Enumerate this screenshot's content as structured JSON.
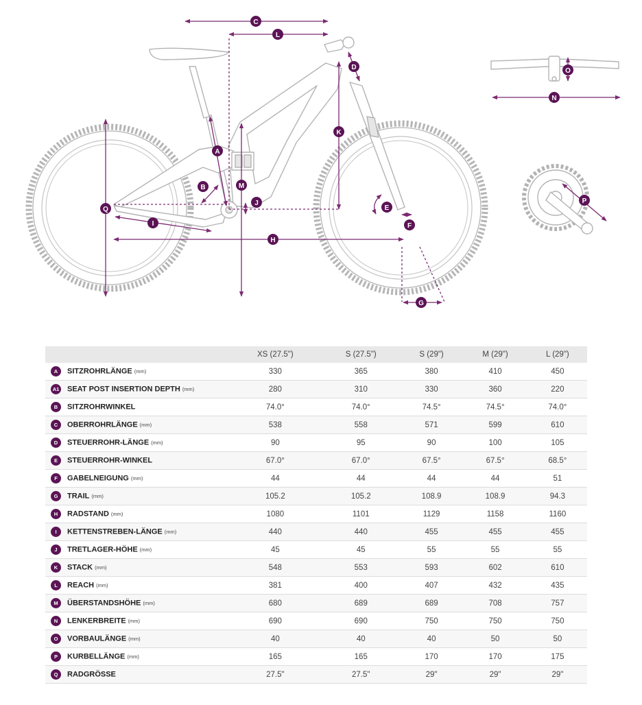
{
  "diagram": {
    "markers": [
      "A",
      "B",
      "C",
      "D",
      "E",
      "F",
      "G",
      "H",
      "I",
      "J",
      "K",
      "L",
      "M",
      "N",
      "O",
      "P",
      "Q"
    ],
    "accent_color": "#7b2a72",
    "frame_color": "#b8b8b8",
    "marker_color": "#5b1455"
  },
  "table": {
    "columns": [
      "XS (27.5\")",
      "S (27.5\")",
      "S (29\")",
      "M (29\")",
      "L (29\")"
    ],
    "rows": [
      {
        "code": "A",
        "name": "SITZROHRLÄNGE",
        "unit": "(mm)",
        "values": [
          "330",
          "365",
          "380",
          "410",
          "450"
        ]
      },
      {
        "code": "A1",
        "name": "SEAT POST INSERTION DEPTH",
        "unit": "(mm)",
        "values": [
          "280",
          "310",
          "330",
          "360",
          "220"
        ]
      },
      {
        "code": "B",
        "name": "SITZROHRWINKEL",
        "unit": "",
        "values": [
          "74.0°",
          "74.0°",
          "74.5°",
          "74.5°",
          "74.0°"
        ]
      },
      {
        "code": "C",
        "name": "OBERROHRLÄNGE",
        "unit": "(mm)",
        "values": [
          "538",
          "558",
          "571",
          "599",
          "610"
        ]
      },
      {
        "code": "D",
        "name": "STEUERROHR-LÄNGE",
        "unit": "(mm)",
        "values": [
          "90",
          "95",
          "90",
          "100",
          "105"
        ]
      },
      {
        "code": "E",
        "name": "STEUERROHR-WINKEL",
        "unit": "",
        "values": [
          "67.0°",
          "67.0°",
          "67.5°",
          "67.5°",
          "68.5°"
        ]
      },
      {
        "code": "F",
        "name": "GABELNEIGUNG",
        "unit": "(mm)",
        "values": [
          "44",
          "44",
          "44",
          "44",
          "51"
        ]
      },
      {
        "code": "G",
        "name": "TRAIL",
        "unit": "(mm)",
        "values": [
          "105.2",
          "105.2",
          "108.9",
          "108.9",
          "94.3"
        ]
      },
      {
        "code": "H",
        "name": "RADSTAND",
        "unit": "(mm)",
        "values": [
          "1080",
          "1101",
          "1129",
          "1158",
          "1160"
        ]
      },
      {
        "code": "I",
        "name": "KETTENSTREBEN-LÄNGE",
        "unit": "(mm)",
        "values": [
          "440",
          "440",
          "455",
          "455",
          "455"
        ]
      },
      {
        "code": "J",
        "name": "TRETLAGER-HÖHE",
        "unit": "(mm)",
        "values": [
          "45",
          "45",
          "55",
          "55",
          "55"
        ]
      },
      {
        "code": "K",
        "name": "STACK",
        "unit": "(mm)",
        "values": [
          "548",
          "553",
          "593",
          "602",
          "610"
        ]
      },
      {
        "code": "L",
        "name": "REACH",
        "unit": "(mm)",
        "values": [
          "381",
          "400",
          "407",
          "432",
          "435"
        ]
      },
      {
        "code": "M",
        "name": "ÜBERSTANDSHÖHE",
        "unit": "(mm)",
        "values": [
          "680",
          "689",
          "689",
          "708",
          "757"
        ]
      },
      {
        "code": "N",
        "name": "LENKERBREITE",
        "unit": "(mm)",
        "values": [
          "690",
          "690",
          "750",
          "750",
          "750"
        ]
      },
      {
        "code": "O",
        "name": "VORBAULÄNGE",
        "unit": "(mm)",
        "values": [
          "40",
          "40",
          "40",
          "50",
          "50"
        ]
      },
      {
        "code": "P",
        "name": "KURBELLÄNGE",
        "unit": "(mm)",
        "values": [
          "165",
          "165",
          "170",
          "170",
          "175"
        ]
      },
      {
        "code": "Q",
        "name": "RADGRÖSSE",
        "unit": "",
        "values": [
          "27.5\"",
          "27.5\"",
          "29\"",
          "29\"",
          "29\""
        ]
      }
    ]
  }
}
